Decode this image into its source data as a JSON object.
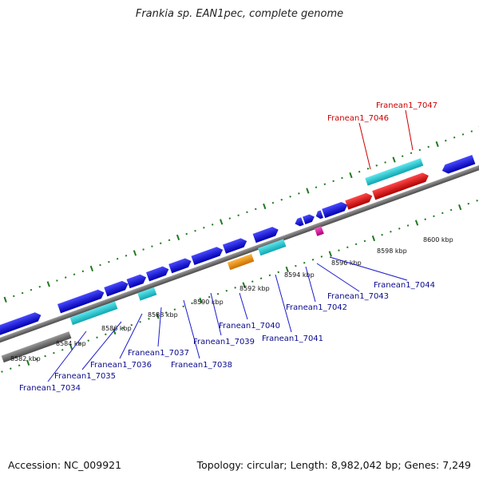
{
  "title": "Frankia sp. EAN1pec, complete genome",
  "footer": {
    "accession": "Accession: NC_009921",
    "summary": "Topology: circular; Length: 8,982,042 bp; Genes: 7,249"
  },
  "colors": {
    "backbone": "#7a7a7a",
    "tick": "#1f7a1f",
    "forward_gene": "#1a1aee",
    "reverse_gene": "#1a1aee",
    "rna": "#19c8d2",
    "highlight": "#ee1111",
    "orange": "#f39a1b",
    "pink": "#e01aa0",
    "label_blue": "#0a0a8c",
    "label_red": "#cc0000"
  },
  "kbp_labels": [
    "8582 kbp",
    "8584 kbp",
    "8586 kbp",
    "8588 kbp",
    "8590 kbp",
    "8592 kbp",
    "8594 kbp",
    "8596 kbp",
    "8598 kbp",
    "8600 kbp"
  ],
  "gene_labels": {
    "g7034": "Franean1_7034",
    "g7035": "Franean1_7035",
    "g7036": "Franean1_7036",
    "g7037": "Franean1_7037",
    "g7038": "Franean1_7038",
    "g7039": "Franean1_7039",
    "g7040": "Franean1_7040",
    "g7041": "Franean1_7041",
    "g7042": "Franean1_7042",
    "g7043": "Franean1_7043",
    "g7044": "Franean1_7044",
    "g7046": "Franean1_7046",
    "g7047": "Franean1_7047"
  }
}
